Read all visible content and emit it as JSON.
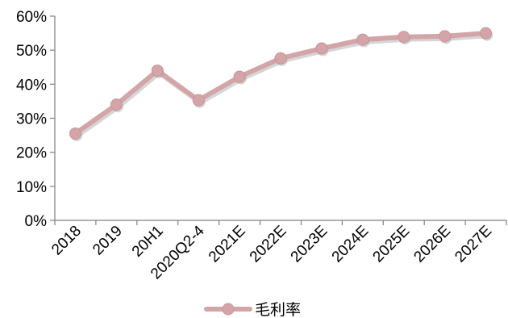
{
  "chart_data": {
    "type": "line",
    "categories": [
      "2018",
      "2019",
      "20H1",
      "2020Q2-4",
      "2021E",
      "2022E",
      "2023E",
      "2024E",
      "2025E",
      "2026E",
      "2027E"
    ],
    "series": [
      {
        "name": "毛利率",
        "values": [
          25.5,
          34.0,
          44.0,
          35.3,
          42.2,
          47.6,
          50.5,
          53.1,
          53.9,
          54.1,
          55.0
        ],
        "color": "#d4a5a8"
      }
    ],
    "y_ticks": [
      "0%",
      "10%",
      "20%",
      "30%",
      "40%",
      "50%",
      "60%"
    ],
    "ylim": [
      0,
      60
    ],
    "y_unit": "%",
    "grid": false,
    "legend_position": "bottom-center"
  }
}
